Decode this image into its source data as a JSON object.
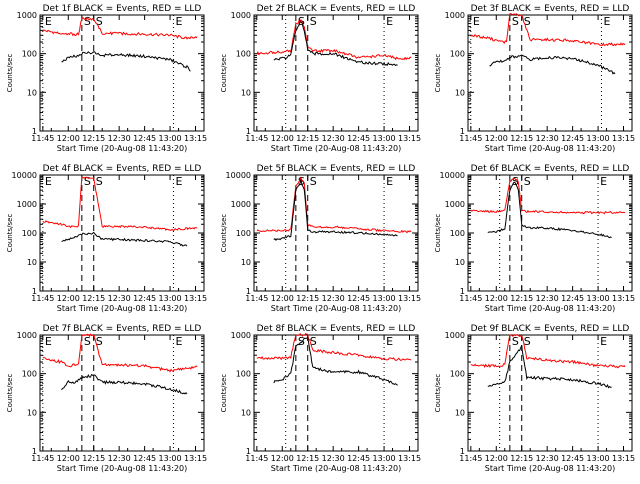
{
  "colors": {
    "events": "#000000",
    "lld": "#ff0000",
    "axes": "#000000",
    "background": "#ffffff"
  },
  "chart_data": [
    {
      "type": "line",
      "title": "Det 1f BLACK = Events, RED = LLD",
      "xlabel": "Start Time (20-Aug-08 11:43:20)",
      "ylabel": "Counts/sec",
      "yscale": "log",
      "ylim": [
        1,
        1000
      ],
      "y_ticks": [
        "1",
        "10",
        "100",
        "1000"
      ],
      "x_ticks": [
        "11:45",
        "12:00",
        "12:15",
        "12:30",
        "12:45",
        "13:00",
        "13:15"
      ],
      "markers": [
        {
          "label": "E",
          "x": "11:45",
          "style": "dotted"
        },
        {
          "label": "S",
          "x": "12:08",
          "style": "dashed"
        },
        {
          "label": "S",
          "x": "12:15",
          "style": "dashed"
        },
        {
          "label": "E",
          "x": "13:02",
          "style": "dotted"
        }
      ],
      "series": [
        {
          "color": "red",
          "x": [
            "11:45",
            "11:56",
            "12:00",
            "12:04",
            "12:06",
            "12:08",
            "12:15",
            "12:20",
            "12:30",
            "12:45",
            "13:00",
            "13:10",
            "13:16"
          ],
          "values": [
            400,
            330,
            330,
            310,
            320,
            800,
            800,
            340,
            330,
            320,
            300,
            250,
            280
          ]
        },
        {
          "color": "black",
          "x": [
            "11:56",
            "12:00",
            "12:04",
            "12:06",
            "12:08",
            "12:15",
            "12:20",
            "12:30",
            "12:45",
            "13:00",
            "13:10",
            "13:12"
          ],
          "values": [
            60,
            80,
            85,
            90,
            100,
            110,
            90,
            95,
            85,
            70,
            45,
            35
          ]
        }
      ]
    },
    {
      "type": "line",
      "title": "Det 2f BLACK = Events, RED = LLD",
      "xlabel": "Start Time (20-Aug-08 11:43:20)",
      "ylabel": "Counts/sec",
      "yscale": "log",
      "ylim": [
        1,
        1000
      ],
      "y_ticks": [
        "1",
        "10",
        "100",
        "1000"
      ],
      "x_ticks": [
        "11:45",
        "12:00",
        "12:15",
        "12:30",
        "12:45",
        "13:00",
        "13:15"
      ],
      "markers": [
        {
          "label": "",
          "x": "12:02",
          "style": "dotted"
        },
        {
          "label": "S",
          "x": "12:08",
          "style": "dashed"
        },
        {
          "label": "S",
          "x": "12:15",
          "style": "dashed"
        },
        {
          "label": "E",
          "x": "13:00",
          "style": "dotted"
        }
      ],
      "series": [
        {
          "color": "red",
          "x": [
            "11:45",
            "11:55",
            "12:00",
            "12:05",
            "12:08",
            "12:11",
            "12:13",
            "12:15",
            "12:18",
            "12:30",
            "12:45",
            "13:00",
            "13:10",
            "13:16"
          ],
          "values": [
            100,
            110,
            110,
            120,
            600,
            700,
            500,
            150,
            120,
            120,
            80,
            90,
            70,
            80
          ]
        },
        {
          "color": "black",
          "x": [
            "11:55",
            "12:00",
            "12:05",
            "12:08",
            "12:11",
            "12:13",
            "12:15",
            "12:18",
            "12:30",
            "12:45",
            "13:00",
            "13:08"
          ],
          "values": [
            70,
            75,
            90,
            400,
            700,
            400,
            130,
            100,
            100,
            60,
            55,
            50
          ]
        }
      ]
    },
    {
      "type": "line",
      "title": "Det 3f BLACK = Events, RED = LLD",
      "xlabel": "Start Time (20-Aug-08 11:43:20)",
      "ylabel": "Counts/sec",
      "yscale": "log",
      "ylim": [
        1,
        1000
      ],
      "y_ticks": [
        "1",
        "10",
        "100",
        "1000"
      ],
      "x_ticks": [
        "11:45",
        "12:00",
        "12:15",
        "12:30",
        "12:45",
        "13:00",
        "13:15"
      ],
      "markers": [
        {
          "label": "E",
          "x": "11:45",
          "style": "dotted"
        },
        {
          "label": "S",
          "x": "12:08",
          "style": "dashed"
        },
        {
          "label": "S",
          "x": "12:15",
          "style": "dashed"
        },
        {
          "label": "E",
          "x": "13:02",
          "style": "dotted"
        }
      ],
      "series": [
        {
          "color": "red",
          "x": [
            "11:45",
            "11:56",
            "12:00",
            "12:04",
            "12:06",
            "12:08",
            "12:15",
            "12:20",
            "12:30",
            "12:45",
            "13:00",
            "13:16"
          ],
          "values": [
            300,
            250,
            220,
            200,
            210,
            1000,
            1000,
            230,
            230,
            220,
            170,
            180
          ]
        },
        {
          "color": "black",
          "x": [
            "11:56",
            "12:00",
            "12:04",
            "12:06",
            "12:08",
            "12:15",
            "12:20",
            "12:30",
            "12:45",
            "13:00",
            "13:10"
          ],
          "values": [
            50,
            60,
            65,
            70,
            80,
            90,
            70,
            80,
            75,
            50,
            30
          ]
        }
      ]
    },
    {
      "type": "line",
      "title": "Det 4f BLACK = Events, RED = LLD",
      "xlabel": "Start Time (20-Aug-08 11:43:20)",
      "ylabel": "Counts/sec",
      "yscale": "log",
      "ylim": [
        1,
        10000
      ],
      "y_ticks": [
        "1",
        "10",
        "100",
        "1000",
        "10000"
      ],
      "x_ticks": [
        "11:45",
        "12:00",
        "12:15",
        "12:30",
        "12:45",
        "13:00",
        "13:15"
      ],
      "markers": [
        {
          "label": "E",
          "x": "11:45",
          "style": "dotted"
        },
        {
          "label": "S",
          "x": "12:08",
          "style": "dashed"
        },
        {
          "label": "S",
          "x": "12:15",
          "style": "dashed"
        },
        {
          "label": "E",
          "x": "13:02",
          "style": "dotted"
        }
      ],
      "series": [
        {
          "color": "red",
          "x": [
            "11:45",
            "11:56",
            "12:00",
            "12:04",
            "12:06",
            "12:08",
            "12:15",
            "12:20",
            "12:30",
            "12:45",
            "13:00",
            "13:16"
          ],
          "values": [
            250,
            200,
            170,
            160,
            170,
            8000,
            8000,
            170,
            170,
            160,
            130,
            150
          ]
        },
        {
          "color": "black",
          "x": [
            "11:56",
            "12:00",
            "12:04",
            "12:06",
            "12:08",
            "12:15",
            "12:20",
            "12:30",
            "12:45",
            "13:00",
            "13:10"
          ],
          "values": [
            50,
            60,
            70,
            80,
            90,
            100,
            60,
            60,
            55,
            50,
            35
          ]
        }
      ]
    },
    {
      "type": "line",
      "title": "Det 5f BLACK = Events, RED = LLD",
      "xlabel": "Start Time (20-Aug-08 11:43:20)",
      "ylabel": "Counts/sec",
      "yscale": "log",
      "ylim": [
        1,
        10000
      ],
      "y_ticks": [
        "1",
        "10",
        "100",
        "1000",
        "10000"
      ],
      "x_ticks": [
        "11:45",
        "12:00",
        "12:15",
        "12:30",
        "12:45",
        "13:00",
        "13:15"
      ],
      "markers": [
        {
          "label": "",
          "x": "12:02",
          "style": "dotted"
        },
        {
          "label": "S",
          "x": "12:08",
          "style": "dashed"
        },
        {
          "label": "S",
          "x": "12:15",
          "style": "dashed"
        },
        {
          "label": "E",
          "x": "13:00",
          "style": "dotted"
        }
      ],
      "series": [
        {
          "color": "red",
          "x": [
            "11:45",
            "11:55",
            "12:00",
            "12:05",
            "12:08",
            "12:11",
            "12:13",
            "12:15",
            "12:18",
            "12:30",
            "12:45",
            "13:00",
            "13:16"
          ],
          "values": [
            120,
            120,
            125,
            130,
            4000,
            8000,
            5000,
            200,
            160,
            160,
            140,
            120,
            110
          ]
        },
        {
          "color": "black",
          "x": [
            "11:55",
            "12:00",
            "12:05",
            "12:08",
            "12:11",
            "12:13",
            "12:15",
            "12:18",
            "12:30",
            "12:45",
            "13:00",
            "13:08"
          ],
          "values": [
            60,
            65,
            80,
            3000,
            6000,
            3000,
            130,
            110,
            110,
            100,
            90,
            80
          ]
        }
      ]
    },
    {
      "type": "line",
      "title": "Det 6f BLACK = Events, RED = LLD",
      "xlabel": "Start Time (20-Aug-08 11:43:20)",
      "ylabel": "Counts/sec",
      "yscale": "log",
      "ylim": [
        1,
        10000
      ],
      "y_ticks": [
        "1",
        "10",
        "100",
        "1000",
        "10000"
      ],
      "x_ticks": [
        "11:45",
        "12:00",
        "12:15",
        "12:30",
        "12:45",
        "13:00",
        "13:15"
      ],
      "markers": [
        {
          "label": "",
          "x": "12:02",
          "style": "dotted"
        },
        {
          "label": "S",
          "x": "12:08",
          "style": "dashed"
        },
        {
          "label": "S",
          "x": "12:15",
          "style": "dashed"
        },
        {
          "label": "E",
          "x": "13:00",
          "style": "dotted"
        }
      ],
      "series": [
        {
          "color": "red",
          "x": [
            "11:45",
            "11:55",
            "12:00",
            "12:05",
            "12:08",
            "12:11",
            "12:13",
            "12:15",
            "12:18",
            "12:30",
            "12:45",
            "13:00",
            "13:16"
          ],
          "values": [
            600,
            550,
            550,
            600,
            6000,
            8000,
            6000,
            600,
            550,
            540,
            500,
            500,
            520
          ]
        },
        {
          "color": "black",
          "x": [
            "11:55",
            "12:00",
            "12:05",
            "12:08",
            "12:11",
            "12:13",
            "12:15",
            "12:18",
            "12:30",
            "12:45",
            "13:00",
            "13:08"
          ],
          "values": [
            100,
            110,
            140,
            3000,
            6000,
            3000,
            200,
            150,
            150,
            120,
            90,
            70
          ]
        }
      ]
    },
    {
      "type": "line",
      "title": "Det 7f BLACK = Events, RED = LLD",
      "xlabel": "Start Time (20-Aug-08 11:43:20)",
      "ylabel": "Counts/sec",
      "yscale": "log",
      "ylim": [
        1,
        1000
      ],
      "y_ticks": [
        "1",
        "10",
        "100",
        "1000"
      ],
      "x_ticks": [
        "11:45",
        "12:00",
        "12:15",
        "12:30",
        "12:45",
        "13:00",
        "13:15"
      ],
      "markers": [
        {
          "label": "E",
          "x": "11:45",
          "style": "dotted"
        },
        {
          "label": "S",
          "x": "12:08",
          "style": "dashed"
        },
        {
          "label": "S",
          "x": "12:15",
          "style": "dashed"
        },
        {
          "label": "E",
          "x": "13:02",
          "style": "dotted"
        }
      ],
      "series": [
        {
          "color": "red",
          "x": [
            "11:45",
            "11:56",
            "12:00",
            "12:04",
            "12:06",
            "12:08",
            "12:15",
            "12:20",
            "12:30",
            "12:45",
            "13:00",
            "13:16"
          ],
          "values": [
            250,
            200,
            150,
            170,
            170,
            1000,
            1000,
            170,
            170,
            160,
            120,
            150
          ]
        },
        {
          "color": "black",
          "x": [
            "11:56",
            "12:00",
            "12:04",
            "12:06",
            "12:08",
            "12:15",
            "12:20",
            "12:30",
            "12:45",
            "13:00",
            "13:10"
          ],
          "values": [
            40,
            60,
            60,
            70,
            80,
            90,
            60,
            60,
            55,
            40,
            30
          ]
        }
      ]
    },
    {
      "type": "line",
      "title": "Det 8f BLACK = Events, RED = LLD",
      "xlabel": "Start Time (20-Aug-08 11:43:20)",
      "ylabel": "Counts/sec",
      "yscale": "log",
      "ylim": [
        1,
        1000
      ],
      "y_ticks": [
        "1",
        "10",
        "100",
        "1000"
      ],
      "x_ticks": [
        "11:45",
        "12:00",
        "12:15",
        "12:30",
        "12:45",
        "13:00",
        "13:15"
      ],
      "markers": [
        {
          "label": "",
          "x": "12:02",
          "style": "dotted"
        },
        {
          "label": "S",
          "x": "12:08",
          "style": "dashed"
        },
        {
          "label": "S",
          "x": "12:15",
          "style": "dashed"
        },
        {
          "label": "E",
          "x": "13:00",
          "style": "dotted"
        }
      ],
      "series": [
        {
          "color": "red",
          "x": [
            "11:45",
            "11:55",
            "12:00",
            "12:05",
            "12:08",
            "12:15",
            "12:18",
            "12:30",
            "12:45",
            "13:00",
            "13:16"
          ],
          "values": [
            260,
            250,
            250,
            270,
            1000,
            1000,
            400,
            350,
            300,
            240,
            230
          ]
        },
        {
          "color": "black",
          "x": [
            "11:55",
            "12:00",
            "12:05",
            "12:08",
            "12:15",
            "12:18",
            "12:30",
            "12:45",
            "13:00",
            "13:08"
          ],
          "values": [
            60,
            70,
            100,
            500,
            900,
            140,
            110,
            110,
            70,
            50
          ]
        }
      ]
    },
    {
      "type": "line",
      "title": "Det 9f BLACK = Events, RED = LLD",
      "xlabel": "Start Time (20-Aug-08 11:43:20)",
      "ylabel": "Counts/sec",
      "yscale": "log",
      "ylim": [
        1,
        1000
      ],
      "y_ticks": [
        "1",
        "10",
        "100",
        "1000"
      ],
      "x_ticks": [
        "11:45",
        "12:00",
        "12:15",
        "12:30",
        "12:45",
        "13:00",
        "13:15"
      ],
      "markers": [
        {
          "label": "",
          "x": "12:02",
          "style": "dotted"
        },
        {
          "label": "S",
          "x": "12:08",
          "style": "dashed"
        },
        {
          "label": "S",
          "x": "12:15",
          "style": "dashed"
        },
        {
          "label": "E",
          "x": "13:00",
          "style": "dotted"
        }
      ],
      "series": [
        {
          "color": "red",
          "x": [
            "11:45",
            "11:55",
            "12:00",
            "12:05",
            "12:08",
            "12:15",
            "12:18",
            "12:30",
            "12:45",
            "13:00",
            "13:16"
          ],
          "values": [
            170,
            160,
            160,
            170,
            1000,
            1000,
            260,
            220,
            200,
            160,
            150
          ]
        },
        {
          "color": "black",
          "x": [
            "11:55",
            "12:00",
            "12:05",
            "12:08",
            "12:15",
            "12:18",
            "12:30",
            "12:45",
            "13:00",
            "13:08"
          ],
          "values": [
            45,
            55,
            60,
            200,
            500,
            80,
            75,
            70,
            55,
            45
          ]
        }
      ]
    }
  ]
}
